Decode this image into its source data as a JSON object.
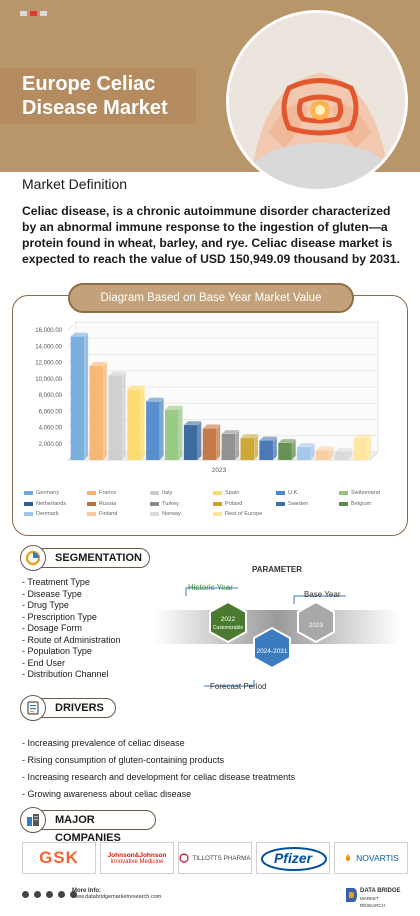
{
  "header": {
    "title_line1": "Europe Celiac",
    "title_line2": "Disease Market",
    "dot_colors": [
      "#d9d9d9",
      "#e03a2a",
      "#d9d9d9"
    ]
  },
  "market_definition": {
    "title": "Market Definition",
    "text": "Celiac disease, is a chronic autoimmune disorder characterized by an abnormal immune response to the ingestion of gluten—a protein found in wheat, barley, and rye. Celiac disease market is expected to reach the value of USD 150,949.09 thousand by 2031."
  },
  "chart_section": {
    "title": "Diagram Based on Base Year Market Value"
  },
  "chart_data": {
    "type": "bar",
    "title": "",
    "categories": [
      "2023"
    ],
    "xlabel": "2023",
    "ylabel": "",
    "ylim": [
      0,
      16000
    ],
    "y_ticks": [
      "2,000.00",
      "4,000.00",
      "6,000.00",
      "8,000.00",
      "10,000.00",
      "12,000.00",
      "14,000.00",
      "16,000.00"
    ],
    "grid": true,
    "legend_position": "bottom",
    "series": [
      {
        "name": "Germany",
        "values": [
          15200
        ],
        "color": "#6fa8dc"
      },
      {
        "name": "France",
        "values": [
          11600
        ],
        "color": "#f6b26b"
      },
      {
        "name": "Italy",
        "values": [
          10400
        ],
        "color": "#cccccc"
      },
      {
        "name": "Spain",
        "values": [
          8700
        ],
        "color": "#ffd966"
      },
      {
        "name": "U.K.",
        "values": [
          7200
        ],
        "color": "#4a86c8"
      },
      {
        "name": "Switzerland",
        "values": [
          6200
        ],
        "color": "#93c47d"
      },
      {
        "name": "Netherlands",
        "values": [
          4300
        ],
        "color": "#2f5f98"
      },
      {
        "name": "Russia",
        "values": [
          3900
        ],
        "color": "#c0703a"
      },
      {
        "name": "Turkey",
        "values": [
          3200
        ],
        "color": "#8a8a8a"
      },
      {
        "name": "Poland",
        "values": [
          2700
        ],
        "color": "#c9a227"
      },
      {
        "name": "Sweden",
        "values": [
          2400
        ],
        "color": "#3c6fb0"
      },
      {
        "name": "Belgium",
        "values": [
          2100
        ],
        "color": "#5a8a46"
      },
      {
        "name": "Denmark",
        "values": [
          1600
        ],
        "color": "#9fc5e8"
      },
      {
        "name": "Finland",
        "values": [
          1200
        ],
        "color": "#f9cb9c"
      },
      {
        "name": "Norway",
        "values": [
          1000
        ],
        "color": "#d9d9d9"
      },
      {
        "name": "Rest of Europe",
        "values": [
          2700
        ],
        "color": "#ffe599"
      }
    ]
  },
  "segmentation": {
    "title": "SEGMENTATION",
    "items": [
      "Treatment Type",
      "Disease Type",
      "Drug Type",
      "Prescription Type",
      "Dosage Form",
      "Route of Administration",
      "Population Type",
      "End User",
      "Distribution Channel"
    ]
  },
  "parameter": {
    "title": "PARAMETER",
    "historic_label": "Historic Year",
    "base_label": "Base Year",
    "forecast_label": "Forecast Period",
    "hex_historic_line1": "2022",
    "hex_historic_line2": "Customizable",
    "hex_forecast": "2024-2031",
    "hex_base": "2023"
  },
  "drivers": {
    "title": "DRIVERS",
    "items": [
      "Increasing prevalence of celiac disease",
      "Rising consumption of gluten-containing products",
      "Increasing research and development for celiac disease treatments",
      "Growing awareness about celiac disease"
    ]
  },
  "companies": {
    "title": "MAJOR COMPANIES",
    "gsk": "GSK",
    "jnj_line1": "Johnson&Johnson",
    "jnj_line2": "Innovative Medicine",
    "tillotts": "TILLOTTS PHARMA",
    "pfizer": "Pfizer",
    "novartis": "NOVARTIS"
  },
  "footer": {
    "more_info": "More Info:",
    "url": "www.databridgemarketresearch.com",
    "brand_line1": "DATA BRIDGE",
    "brand_line2": "MARKET RESEARCH"
  }
}
